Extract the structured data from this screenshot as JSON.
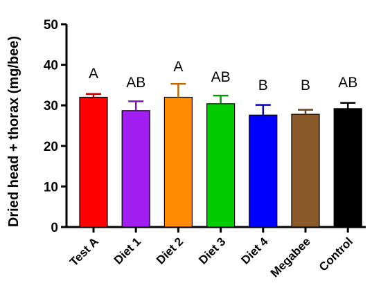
{
  "chart_data": {
    "type": "bar",
    "categories": [
      "Test A",
      "Diet 1",
      "Diet 2",
      "Diet 3",
      "Diet 4",
      "Megabee",
      "Control"
    ],
    "values": [
      32.0,
      28.7,
      32.0,
      30.4,
      27.6,
      27.8,
      29.2
    ],
    "errors": [
      0.8,
      2.3,
      3.3,
      2.0,
      2.5,
      1.1,
      1.4
    ],
    "letters": [
      "A",
      "AB",
      "A",
      "AB",
      "B",
      "B",
      "AB"
    ],
    "colors": [
      "#ff0000",
      "#a01ef0",
      "#ff8c00",
      "#00cc00",
      "#0000ff",
      "#8b5a2b",
      "#000000"
    ],
    "ylabel": "Dried head + thorax (mg/bee)",
    "xlabel": "",
    "ylim": [
      0,
      50
    ],
    "yticks": [
      "0",
      "10",
      "20",
      "30",
      "40",
      "50"
    ],
    "grid": false
  }
}
